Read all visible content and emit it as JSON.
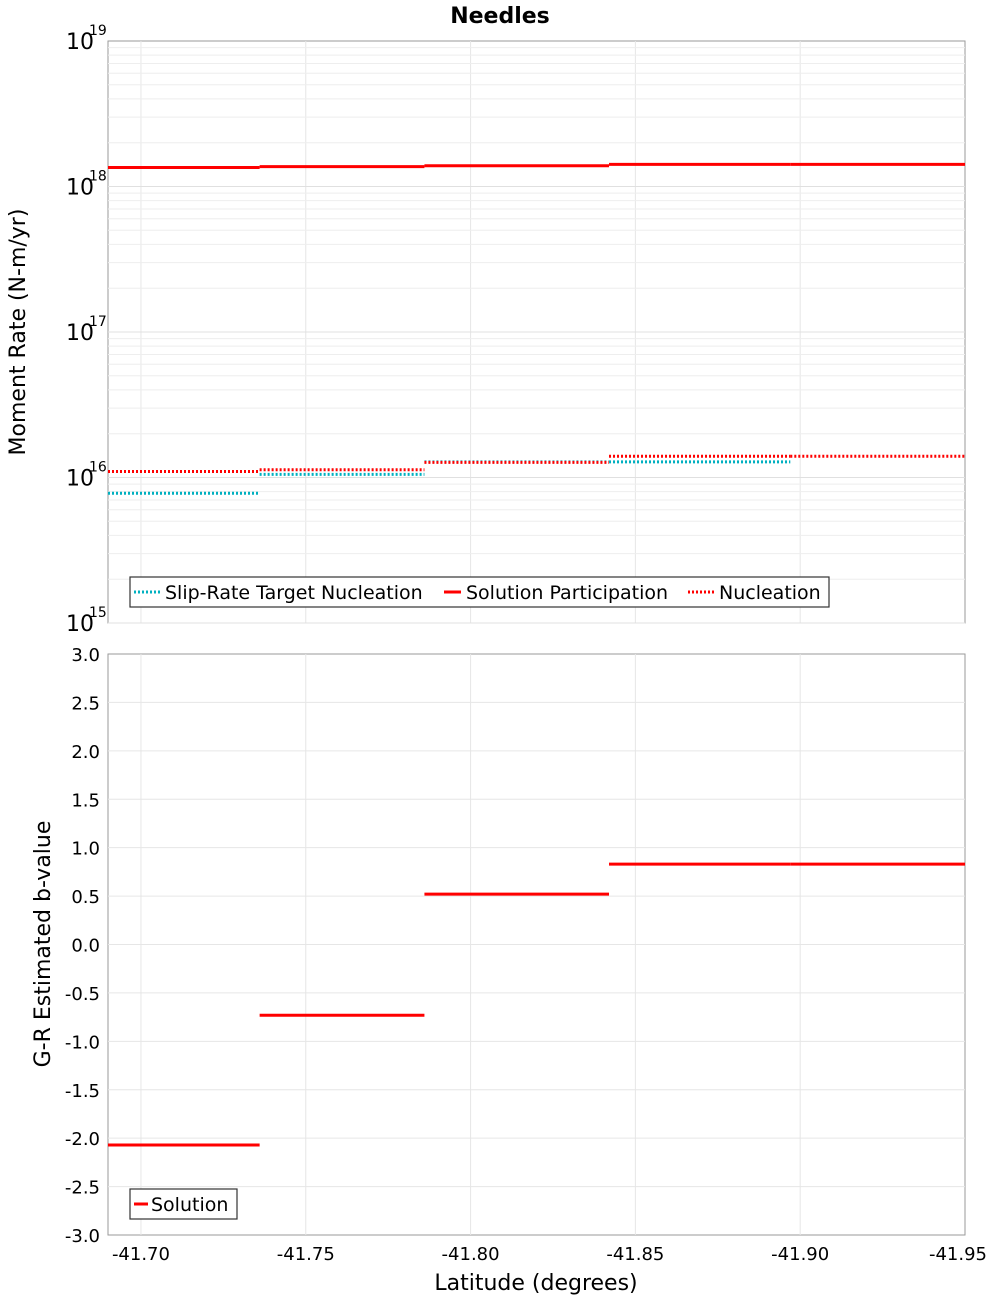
{
  "chart_data": [
    {
      "type": "line",
      "title": "Needles",
      "xlabel": "Latitude (degrees)",
      "ylabel": "Moment Rate (N-m/yr)",
      "yscale": "log",
      "ylim": [
        1000000000000000.0,
        1e+19
      ],
      "xlim": [
        -41.69,
        -41.95
      ],
      "yticks": [
        {
          "base": "10",
          "exp": "15"
        },
        {
          "base": "10",
          "exp": "16"
        },
        {
          "base": "10",
          "exp": "17"
        },
        {
          "base": "10",
          "exp": "18"
        },
        {
          "base": "10",
          "exp": "19"
        }
      ],
      "series": [
        {
          "name": "Slip-Rate Target Nucleation",
          "color": "#00b0c0",
          "style": "dotted",
          "segments": [
            {
              "x0": -41.69,
              "x1": -41.736,
              "y": 7800000000000000.0
            },
            {
              "x0": -41.736,
              "x1": -41.786,
              "y": 1.05e+16
            },
            {
              "x0": -41.786,
              "x1": -41.842,
              "y": 1.28e+16
            },
            {
              "x0": -41.842,
              "x1": -41.897,
              "y": 1.28e+16
            }
          ]
        },
        {
          "name": "Solution Participation",
          "color": "#ff0000",
          "style": "solid",
          "segments": [
            {
              "x0": -41.69,
              "x1": -41.736,
              "y": 1.35e+18
            },
            {
              "x0": -41.736,
              "x1": -41.786,
              "y": 1.37e+18
            },
            {
              "x0": -41.786,
              "x1": -41.842,
              "y": 1.39e+18
            },
            {
              "x0": -41.842,
              "x1": -41.897,
              "y": 1.42e+18
            },
            {
              "x0": -41.897,
              "x1": -41.95,
              "y": 1.42e+18
            }
          ]
        },
        {
          "name": "Nucleation",
          "color": "#ff0000",
          "style": "dotted",
          "segments": [
            {
              "x0": -41.69,
              "x1": -41.736,
              "y": 1.1e+16
            },
            {
              "x0": -41.736,
              "x1": -41.786,
              "y": 1.13e+16
            },
            {
              "x0": -41.786,
              "x1": -41.842,
              "y": 1.27e+16
            },
            {
              "x0": -41.842,
              "x1": -41.897,
              "y": 1.4e+16
            },
            {
              "x0": -41.897,
              "x1": -41.95,
              "y": 1.4e+16
            }
          ]
        }
      ],
      "legend_position": "bottom-left"
    },
    {
      "type": "line",
      "xlabel": "Latitude (degrees)",
      "ylabel": "G-R Estimated b-value",
      "ylim": [
        -3.0,
        3.0
      ],
      "xlim": [
        -41.69,
        -41.95
      ],
      "yticks": [
        "3.0",
        "2.5",
        "2.0",
        "1.5",
        "1.0",
        "0.5",
        "0.0",
        "-0.5",
        "-1.0",
        "-1.5",
        "-2.0",
        "-2.5",
        "-3.0"
      ],
      "xticks": [
        "-41.70",
        "-41.75",
        "-41.80",
        "-41.85",
        "-41.90",
        "-41.95"
      ],
      "series": [
        {
          "name": "Solution",
          "color": "#ff0000",
          "style": "solid",
          "segments": [
            {
              "x0": -41.69,
              "x1": -41.736,
              "y": -2.07
            },
            {
              "x0": -41.736,
              "x1": -41.786,
              "y": -0.73
            },
            {
              "x0": -41.786,
              "x1": -41.842,
              "y": 0.52
            },
            {
              "x0": -41.842,
              "x1": -41.897,
              "y": 0.83
            },
            {
              "x0": -41.897,
              "x1": -41.95,
              "y": 0.83
            }
          ]
        }
      ],
      "legend_position": "bottom-left"
    }
  ]
}
